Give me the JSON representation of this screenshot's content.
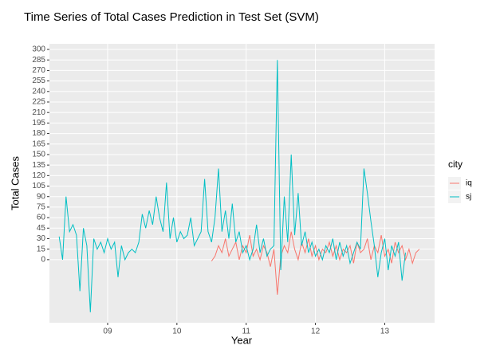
{
  "chart_data": {
    "type": "line",
    "title": "Time Series of Total Cases Prediction in Test Set (SVM)",
    "x_label": "Year",
    "y_label": "Total Cases",
    "legend_title": "city",
    "xlim": [
      2008.16,
      2013.72
    ],
    "xticks": [
      {
        "value": 2009,
        "label": "09"
      },
      {
        "value": 2010,
        "label": "10"
      },
      {
        "value": 2011,
        "label": "11"
      },
      {
        "value": 2012,
        "label": "12"
      },
      {
        "value": 2013,
        "label": "13"
      }
    ],
    "ylim": [
      -90,
      308
    ],
    "yticks": [
      0,
      15,
      30,
      45,
      60,
      75,
      90,
      105,
      120,
      135,
      150,
      165,
      180,
      195,
      210,
      225,
      240,
      255,
      270,
      285,
      300
    ],
    "grid": true,
    "series": [
      {
        "name": "iq",
        "color": "#F8766D",
        "x": [
          2010.5,
          2010.55,
          2010.6,
          2010.65,
          2010.7,
          2010.75,
          2010.8,
          2010.85,
          2010.9,
          2010.95,
          2011,
          2011.05,
          2011.1,
          2011.15,
          2011.2,
          2011.25,
          2011.3,
          2011.35,
          2011.4,
          2011.45,
          2011.5,
          2011.55,
          2011.6,
          2011.65,
          2011.7,
          2011.75,
          2011.8,
          2011.85,
          2011.9,
          2011.95,
          2012,
          2012.05,
          2012.1,
          2012.15,
          2012.2,
          2012.25,
          2012.3,
          2012.35,
          2012.4,
          2012.45,
          2012.5,
          2012.55,
          2012.6,
          2012.65,
          2012.7,
          2012.75,
          2012.8,
          2012.85,
          2012.9,
          2012.95,
          2013,
          2013.05,
          2013.1,
          2013.15,
          2013.2,
          2013.25,
          2013.3,
          2013.35,
          2013.4,
          2013.45,
          2013.5
        ],
        "values": [
          -2,
          5,
          20,
          10,
          30,
          5,
          15,
          25,
          0,
          20,
          10,
          35,
          5,
          15,
          0,
          20,
          10,
          -10,
          15,
          -50,
          5,
          20,
          10,
          40,
          15,
          0,
          25,
          10,
          30,
          5,
          20,
          0,
          15,
          10,
          25,
          5,
          20,
          0,
          15,
          10,
          20,
          -5,
          25,
          10,
          15,
          30,
          0,
          20,
          10,
          35,
          5,
          15,
          -5,
          25,
          10,
          20,
          0,
          15,
          -5,
          10,
          15
        ]
      },
      {
        "name": "sj",
        "color": "#00BFC4",
        "x": [
          2008.3,
          2008.35,
          2008.4,
          2008.45,
          2008.5,
          2008.55,
          2008.6,
          2008.65,
          2008.7,
          2008.75,
          2008.8,
          2008.85,
          2008.9,
          2008.95,
          2009,
          2009.05,
          2009.1,
          2009.15,
          2009.2,
          2009.25,
          2009.3,
          2009.35,
          2009.4,
          2009.45,
          2009.5,
          2009.55,
          2009.6,
          2009.65,
          2009.7,
          2009.75,
          2009.8,
          2009.85,
          2009.9,
          2009.95,
          2010,
          2010.05,
          2010.1,
          2010.15,
          2010.2,
          2010.25,
          2010.3,
          2010.35,
          2010.4,
          2010.45,
          2010.5,
          2010.55,
          2010.6,
          2010.65,
          2010.7,
          2010.75,
          2010.8,
          2010.85,
          2010.9,
          2010.95,
          2011,
          2011.05,
          2011.1,
          2011.15,
          2011.2,
          2011.25,
          2011.3,
          2011.35,
          2011.4,
          2011.45,
          2011.5,
          2011.55,
          2011.6,
          2011.65,
          2011.7,
          2011.75,
          2011.8,
          2011.85,
          2011.9,
          2011.95,
          2012,
          2012.05,
          2012.1,
          2012.15,
          2012.2,
          2012.25,
          2012.3,
          2012.35,
          2012.4,
          2012.45,
          2012.5,
          2012.55,
          2012.6,
          2012.65,
          2012.7,
          2012.75,
          2012.8,
          2012.85,
          2012.9,
          2012.95,
          2013,
          2013.05,
          2013.1,
          2013.15,
          2013.2,
          2013.25,
          2013.3
        ],
        "values": [
          33,
          0,
          90,
          40,
          50,
          35,
          -45,
          45,
          20,
          -75,
          30,
          15,
          25,
          10,
          30,
          15,
          25,
          -25,
          20,
          0,
          10,
          15,
          10,
          25,
          65,
          45,
          70,
          50,
          90,
          60,
          40,
          110,
          30,
          60,
          25,
          40,
          30,
          35,
          60,
          20,
          30,
          40,
          115,
          40,
          25,
          60,
          130,
          40,
          70,
          30,
          80,
          25,
          40,
          10,
          20,
          0,
          15,
          50,
          10,
          30,
          5,
          15,
          20,
          285,
          -15,
          90,
          25,
          150,
          35,
          95,
          20,
          40,
          10,
          25,
          5,
          15,
          0,
          20,
          10,
          30,
          0,
          25,
          5,
          20,
          -5,
          10,
          25,
          15,
          130,
          95,
          55,
          20,
          -25,
          10,
          30,
          -15,
          20,
          5,
          25,
          -30,
          10
        ]
      }
    ]
  }
}
